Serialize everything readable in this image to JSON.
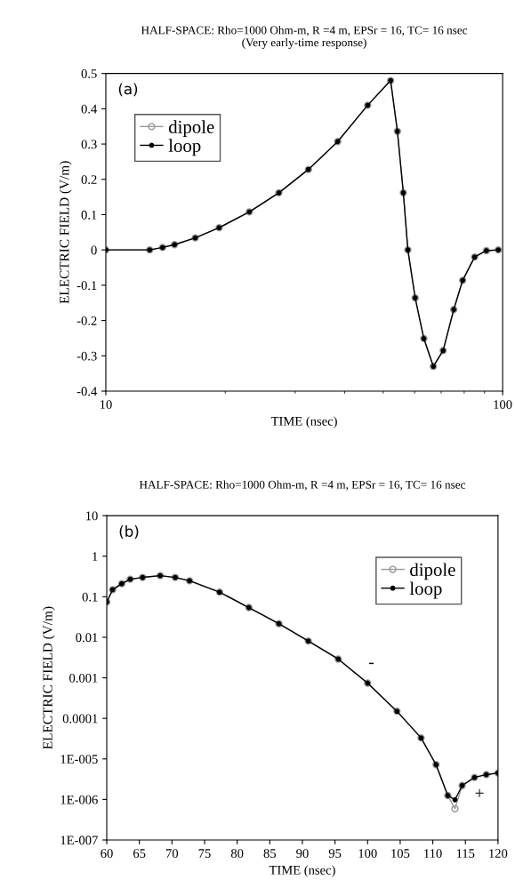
{
  "chart_data": [
    {
      "type": "line",
      "title": "HALF-SPACE: Rho=1000 Ohm-m, R =4 m, EPSr = 16, TC= 16 nsec",
      "subtitle": "(Very early-time response)",
      "xlabel": "TIME (nsec)",
      "ylabel": "ELECTRIC FIELD (V/m)",
      "annotations": [
        "(a)"
      ],
      "log": "x",
      "xlim": [
        10,
        100
      ],
      "xticks": [
        10,
        100
      ],
      "ylim": [
        -0.4,
        0.5
      ],
      "yticks": [
        -0.4,
        -0.3,
        -0.2,
        -0.1,
        0,
        0.1,
        0.2,
        0.3,
        0.4,
        0.5
      ],
      "x": [
        10,
        12.9,
        13.9,
        14.9,
        16.8,
        19.3,
        23.0,
        27.3,
        32.4,
        38.4,
        45.7,
        52.2,
        54.3,
        56.2,
        57.7,
        60.2,
        63.3,
        66.9,
        70.8,
        75.3,
        79.3,
        85.0,
        91.0,
        97.5
      ],
      "series": [
        {
          "name": "dipole",
          "color": "#999999",
          "values": [
            0,
            0,
            0.007,
            0.015,
            0.034,
            0.063,
            0.108,
            0.162,
            0.228,
            0.307,
            0.41,
            0.48,
            0.336,
            0.162,
            0,
            -0.136,
            -0.251,
            -0.33,
            -0.285,
            -0.169,
            -0.086,
            -0.02,
            -0.002,
            0
          ]
        },
        {
          "name": "loop",
          "color": "#000000",
          "values": [
            0,
            0,
            0.007,
            0.015,
            0.034,
            0.063,
            0.108,
            0.162,
            0.228,
            0.307,
            0.41,
            0.48,
            0.336,
            0.162,
            0,
            -0.136,
            -0.251,
            -0.33,
            -0.285,
            -0.169,
            -0.086,
            -0.02,
            -0.002,
            0
          ]
        }
      ],
      "legend": "top left",
      "marker": "circle",
      "grid": false
    },
    {
      "type": "line",
      "title": "HALF-SPACE: Rho=1000 Ohm-m, R =4 m, EPSr = 16, TC= 16 nsec",
      "xlabel": "TIME (nsec)",
      "ylabel": "ELECTRIC FIELD (V/m)",
      "annotations": [
        "(b)",
        {
          "text": "-",
          "x": 100,
          "y": 0.00074
        },
        {
          "text": "+",
          "x": 116.4,
          "y": 3.5e-06
        }
      ],
      "log": "y",
      "xlim": [
        60,
        120
      ],
      "xticks": [
        60,
        65,
        70,
        75,
        80,
        85,
        90,
        95,
        100,
        105,
        110,
        115,
        120
      ],
      "ylim": [
        1e-07,
        10
      ],
      "yticks": [
        {
          "value": 1e-07,
          "label": "1E-007"
        },
        {
          "value": 1e-06,
          "label": "1E-006"
        },
        {
          "value": 1e-05,
          "label": "1E-005"
        },
        0.0001,
        0.001,
        0.01,
        0.1,
        1,
        10
      ],
      "x": [
        60,
        60.9,
        62.3,
        63.6,
        65.5,
        68.2,
        70.5,
        72.7,
        77.3,
        81.8,
        86.4,
        90.9,
        95.5,
        100,
        104.5,
        108.2,
        110.5,
        112.3,
        113.4,
        114.5,
        116.4,
        118.2,
        120
      ],
      "series": [
        {
          "name": "dipole",
          "color": "#999999",
          "values": [
            0.074,
            0.149,
            0.21,
            0.27,
            0.3,
            0.33,
            0.3,
            0.247,
            0.13,
            0.054,
            0.0216,
            0.0081,
            0.0029,
            0.00074,
            0.00015,
            3.3e-05,
            7.2e-06,
            1.25e-06,
            5.9e-07,
            2.2e-06,
            3.5e-06,
            4.1e-06,
            4.5e-06
          ]
        },
        {
          "name": "loop",
          "color": "#000000",
          "values": [
            0.074,
            0.149,
            0.21,
            0.27,
            0.3,
            0.33,
            0.3,
            0.247,
            0.13,
            0.054,
            0.0216,
            0.0081,
            0.0029,
            0.00074,
            0.00015,
            3.3e-05,
            7.2e-06,
            1.25e-06,
            9.8e-07,
            2.2e-06,
            3.5e-06,
            4.1e-06,
            4.5e-06
          ]
        }
      ],
      "legend": "top right",
      "marker": "circle",
      "grid": false
    }
  ]
}
